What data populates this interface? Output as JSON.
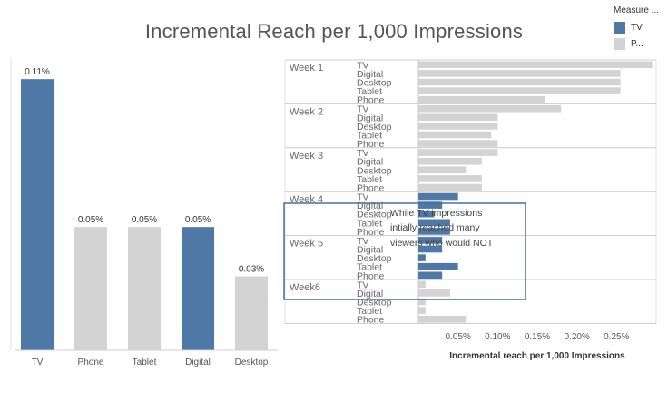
{
  "title": "Incremental Reach per 1,000 Impressions",
  "legend": {
    "title": "Measure ...",
    "items": [
      {
        "label": "TV",
        "color": "#4e79a7"
      },
      {
        "label": "P...",
        "color": "#d3d3d3"
      }
    ]
  },
  "colors": {
    "highlight": "#4e79a7",
    "other": "#d3d3d3"
  },
  "chart_data": [
    {
      "type": "bar",
      "categories": [
        "TV",
        "Phone",
        "Tablet",
        "Digital",
        "Desktop"
      ],
      "values": [
        0.11,
        0.05,
        0.05,
        0.05,
        0.03
      ],
      "labels": [
        "0.11%",
        "0.05%",
        "0.05%",
        "0.05%",
        "0.03%"
      ],
      "highlight": [
        true,
        false,
        false,
        true,
        false
      ],
      "ylim": [
        0,
        0.12
      ]
    },
    {
      "type": "bar",
      "orientation": "horizontal",
      "xlabel": "Incremental reach per 1,000 Impressions",
      "xlim": [
        0,
        0.3
      ],
      "xticks": [
        0.05,
        0.1,
        0.15,
        0.2,
        0.25
      ],
      "xtick_labels": [
        "0.05%",
        "0.10%",
        "0.15%",
        "0.20%",
        "0.25%"
      ],
      "groups": [
        {
          "week": "Week 1",
          "rows": [
            {
              "device": "TV",
              "value": 0.295,
              "highlight": false
            },
            {
              "device": "Digital",
              "value": 0.255,
              "highlight": false
            },
            {
              "device": "Desktop",
              "value": 0.255,
              "highlight": false
            },
            {
              "device": "Tablet",
              "value": 0.255,
              "highlight": false
            },
            {
              "device": "Phone",
              "value": 0.16,
              "highlight": false
            }
          ]
        },
        {
          "week": "Week 2",
          "rows": [
            {
              "device": "TV",
              "value": 0.18,
              "highlight": false
            },
            {
              "device": "Digital",
              "value": 0.1,
              "highlight": false
            },
            {
              "device": "Desktop",
              "value": 0.1,
              "highlight": false
            },
            {
              "device": "Tablet",
              "value": 0.092,
              "highlight": false
            },
            {
              "device": "Phone",
              "value": 0.1,
              "highlight": false
            }
          ]
        },
        {
          "week": "Week 3",
          "rows": [
            {
              "device": "TV",
              "value": 0.1,
              "highlight": false
            },
            {
              "device": "Digital",
              "value": 0.08,
              "highlight": false
            },
            {
              "device": "Desktop",
              "value": 0.06,
              "highlight": false
            },
            {
              "device": "Tablet",
              "value": 0.08,
              "highlight": false
            },
            {
              "device": "Phone",
              "value": 0.08,
              "highlight": false
            }
          ]
        },
        {
          "week": "Week 4",
          "rows": [
            {
              "device": "TV",
              "value": 0.05,
              "highlight": true
            },
            {
              "device": "Digital",
              "value": 0.03,
              "highlight": true
            },
            {
              "device": "Desktop",
              "value": 0.02,
              "highlight": true
            },
            {
              "device": "Tablet",
              "value": 0.04,
              "highlight": true
            },
            {
              "device": "Phone",
              "value": 0.04,
              "highlight": true
            }
          ]
        },
        {
          "week": "Week 5",
          "rows": [
            {
              "device": "TV",
              "value": 0.03,
              "highlight": true
            },
            {
              "device": "Digital",
              "value": 0.03,
              "highlight": true
            },
            {
              "device": "Desktop",
              "value": 0.009,
              "highlight": true
            },
            {
              "device": "Tablet",
              "value": 0.05,
              "highlight": true
            },
            {
              "device": "Phone",
              "value": 0.03,
              "highlight": true
            }
          ]
        },
        {
          "week": "Week6",
          "rows": [
            {
              "device": "TV",
              "value": 0.009,
              "highlight": false
            },
            {
              "device": "Digital",
              "value": 0.04,
              "highlight": false
            },
            {
              "device": "Desktop",
              "value": 0.009,
              "highlight": false
            },
            {
              "device": "Tablet",
              "value": 0.009,
              "highlight": false
            },
            {
              "device": "Phone",
              "value": 0.06,
              "highlight": false
            }
          ]
        }
      ]
    }
  ],
  "annotation": {
    "lines": [
      "While TV impressions",
      "intially reached many",
      "viewers who would NOT"
    ]
  }
}
